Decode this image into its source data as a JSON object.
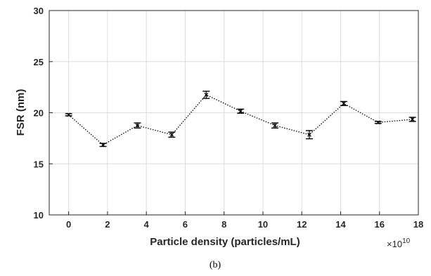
{
  "chart_data": {
    "type": "line",
    "title": "",
    "xlabel": "Particle density (particles/mL)",
    "ylabel": "FSR (nm)",
    "x_multiplier_label": "×10",
    "x_multiplier_exponent": "10",
    "caption": "(b)",
    "xlim": [
      -1,
      18
    ],
    "ylim": [
      10,
      30
    ],
    "xticks": [
      "0",
      "2",
      "4",
      "6",
      "8",
      "10",
      "12",
      "14",
      "16",
      "18"
    ],
    "yticks": [
      "10",
      "15",
      "20",
      "25",
      "30"
    ],
    "grid": true,
    "series": [
      {
        "x": [
          0,
          1.77,
          3.54,
          5.31,
          7.08,
          8.85,
          10.62,
          12.39,
          14.16,
          15.93,
          17.7
        ],
        "y": [
          19.8,
          16.85,
          18.75,
          17.85,
          21.75,
          20.15,
          18.75,
          17.85,
          20.9,
          19.05,
          19.35
        ],
        "error": [
          0.1,
          0.15,
          0.25,
          0.25,
          0.35,
          0.2,
          0.25,
          0.4,
          0.2,
          0.1,
          0.2
        ],
        "style": "dotted",
        "marker": "x",
        "color": "#000000"
      }
    ]
  }
}
